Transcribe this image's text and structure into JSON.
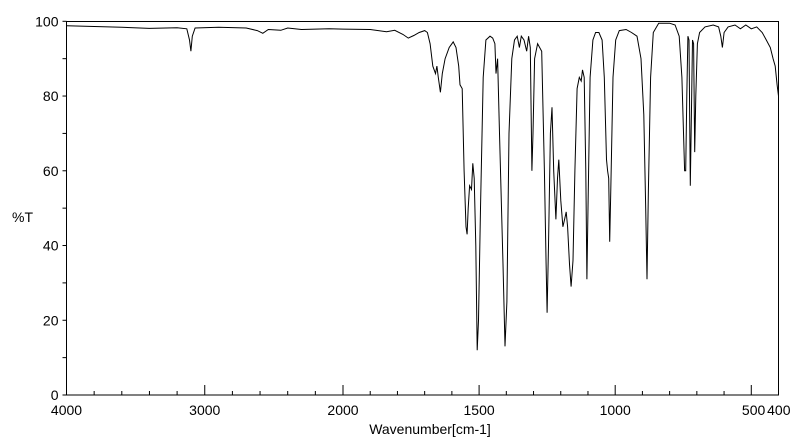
{
  "chart_data": {
    "type": "line",
    "title": "",
    "xlabel": "Wavenumber[cm-1]",
    "ylabel": "%T",
    "xlim": [
      4000,
      400
    ],
    "ylim": [
      0,
      100
    ],
    "x_axis_note": "split scale: 4000-2000 compressed, 2000-400 expanded",
    "xticks": [
      {
        "value": 4000,
        "label": "4000"
      },
      {
        "value": 3000,
        "label": "3000"
      },
      {
        "value": 2000,
        "label": "2000"
      },
      {
        "value": 1500,
        "label": "1500"
      },
      {
        "value": 1000,
        "label": "1000"
      },
      {
        "value": 500,
        "label": "500"
      },
      {
        "value": 400,
        "label": "400"
      }
    ],
    "yticks": [
      {
        "value": 0,
        "label": "0"
      },
      {
        "value": 20,
        "label": "20"
      },
      {
        "value": 40,
        "label": "40"
      },
      {
        "value": 60,
        "label": "60"
      },
      {
        "value": 80,
        "label": "80"
      },
      {
        "value": 100,
        "label": "100"
      }
    ],
    "grid": false,
    "series": [
      {
        "name": "%T",
        "color": "#000000",
        "points": [
          [
            4000,
            98.8
          ],
          [
            3800,
            98.6
          ],
          [
            3600,
            98.4
          ],
          [
            3400,
            98.1
          ],
          [
            3200,
            98.3
          ],
          [
            3130,
            98.0
          ],
          [
            3110,
            95
          ],
          [
            3100,
            92
          ],
          [
            3090,
            96
          ],
          [
            3070,
            98.2
          ],
          [
            2900,
            98.4
          ],
          [
            2700,
            98.2
          ],
          [
            2620,
            97.5
          ],
          [
            2580,
            96.8
          ],
          [
            2540,
            97.8
          ],
          [
            2450,
            97.6
          ],
          [
            2400,
            98.2
          ],
          [
            2300,
            97.8
          ],
          [
            2200,
            97.9
          ],
          [
            2100,
            98
          ],
          [
            2000,
            97.9
          ],
          [
            1900,
            97.8
          ],
          [
            1840,
            97.2
          ],
          [
            1810,
            97.6
          ],
          [
            1780,
            96.5
          ],
          [
            1760,
            95.5
          ],
          [
            1740,
            96.2
          ],
          [
            1720,
            97
          ],
          [
            1700,
            97.5
          ],
          [
            1690,
            97
          ],
          [
            1680,
            94
          ],
          [
            1670,
            88
          ],
          [
            1660,
            86
          ],
          [
            1655,
            88
          ],
          [
            1650,
            85
          ],
          [
            1642,
            81
          ],
          [
            1635,
            86
          ],
          [
            1625,
            90
          ],
          [
            1610,
            93
          ],
          [
            1595,
            94.5
          ],
          [
            1585,
            93
          ],
          [
            1575,
            88
          ],
          [
            1570,
            83
          ],
          [
            1562,
            82
          ],
          [
            1555,
            60
          ],
          [
            1548,
            45
          ],
          [
            1544,
            43
          ],
          [
            1540,
            50
          ],
          [
            1535,
            56
          ],
          [
            1528,
            55
          ],
          [
            1523,
            62
          ],
          [
            1518,
            58
          ],
          [
            1512,
            40
          ],
          [
            1507,
            12
          ],
          [
            1502,
            20
          ],
          [
            1495,
            50
          ],
          [
            1485,
            85
          ],
          [
            1475,
            95
          ],
          [
            1460,
            96
          ],
          [
            1450,
            95.5
          ],
          [
            1442,
            94
          ],
          [
            1438,
            86
          ],
          [
            1432,
            90
          ],
          [
            1425,
            70
          ],
          [
            1412,
            35
          ],
          [
            1405,
            13
          ],
          [
            1398,
            25
          ],
          [
            1390,
            70
          ],
          [
            1380,
            90
          ],
          [
            1370,
            95
          ],
          [
            1360,
            96
          ],
          [
            1352,
            93
          ],
          [
            1345,
            96
          ],
          [
            1335,
            95
          ],
          [
            1325,
            92
          ],
          [
            1318,
            96
          ],
          [
            1312,
            93
          ],
          [
            1306,
            60
          ],
          [
            1302,
            70
          ],
          [
            1296,
            90
          ],
          [
            1285,
            94
          ],
          [
            1270,
            92
          ],
          [
            1260,
            60
          ],
          [
            1254,
            35
          ],
          [
            1250,
            22
          ],
          [
            1245,
            40
          ],
          [
            1238,
            70
          ],
          [
            1232,
            77
          ],
          [
            1226,
            60
          ],
          [
            1218,
            47
          ],
          [
            1212,
            58
          ],
          [
            1207,
            63
          ],
          [
            1200,
            52
          ],
          [
            1192,
            45
          ],
          [
            1186,
            47
          ],
          [
            1180,
            49
          ],
          [
            1175,
            45
          ],
          [
            1168,
            35
          ],
          [
            1162,
            29
          ],
          [
            1155,
            36
          ],
          [
            1148,
            60
          ],
          [
            1140,
            82
          ],
          [
            1132,
            85
          ],
          [
            1125,
            84
          ],
          [
            1120,
            87
          ],
          [
            1114,
            85
          ],
          [
            1108,
            60
          ],
          [
            1104,
            31
          ],
          [
            1100,
            50
          ],
          [
            1092,
            85
          ],
          [
            1082,
            95
          ],
          [
            1072,
            97
          ],
          [
            1060,
            97
          ],
          [
            1048,
            95
          ],
          [
            1040,
            85
          ],
          [
            1032,
            63
          ],
          [
            1028,
            60
          ],
          [
            1024,
            58
          ],
          [
            1020,
            41
          ],
          [
            1016,
            55
          ],
          [
            1008,
            85
          ],
          [
            998,
            95
          ],
          [
            985,
            97.5
          ],
          [
            960,
            97.8
          ],
          [
            940,
            97
          ],
          [
            920,
            96
          ],
          [
            905,
            90
          ],
          [
            895,
            75
          ],
          [
            888,
            50
          ],
          [
            883,
            31
          ],
          [
            878,
            55
          ],
          [
            870,
            85
          ],
          [
            860,
            97
          ],
          [
            840,
            99.5
          ],
          [
            800,
            99.5
          ],
          [
            780,
            99
          ],
          [
            765,
            96
          ],
          [
            755,
            85
          ],
          [
            745,
            60
          ],
          [
            741,
            60
          ],
          [
            737,
            80
          ],
          [
            733,
            96
          ],
          [
            729,
            95
          ],
          [
            724,
            56
          ],
          [
            720,
            75
          ],
          [
            716,
            95
          ],
          [
            712,
            94
          ],
          [
            708,
            65
          ],
          [
            704,
            80
          ],
          [
            698,
            94
          ],
          [
            690,
            97
          ],
          [
            670,
            98.5
          ],
          [
            640,
            99
          ],
          [
            620,
            98.5
          ],
          [
            612,
            96
          ],
          [
            606,
            93
          ],
          [
            600,
            97
          ],
          [
            585,
            98.5
          ],
          [
            560,
            99
          ],
          [
            540,
            98
          ],
          [
            520,
            99
          ],
          [
            500,
            98
          ],
          [
            480,
            98.5
          ],
          [
            460,
            97
          ],
          [
            445,
            95
          ],
          [
            430,
            93
          ],
          [
            420,
            90
          ],
          [
            412,
            88
          ],
          [
            405,
            83
          ],
          [
            400,
            80
          ]
        ]
      }
    ]
  }
}
